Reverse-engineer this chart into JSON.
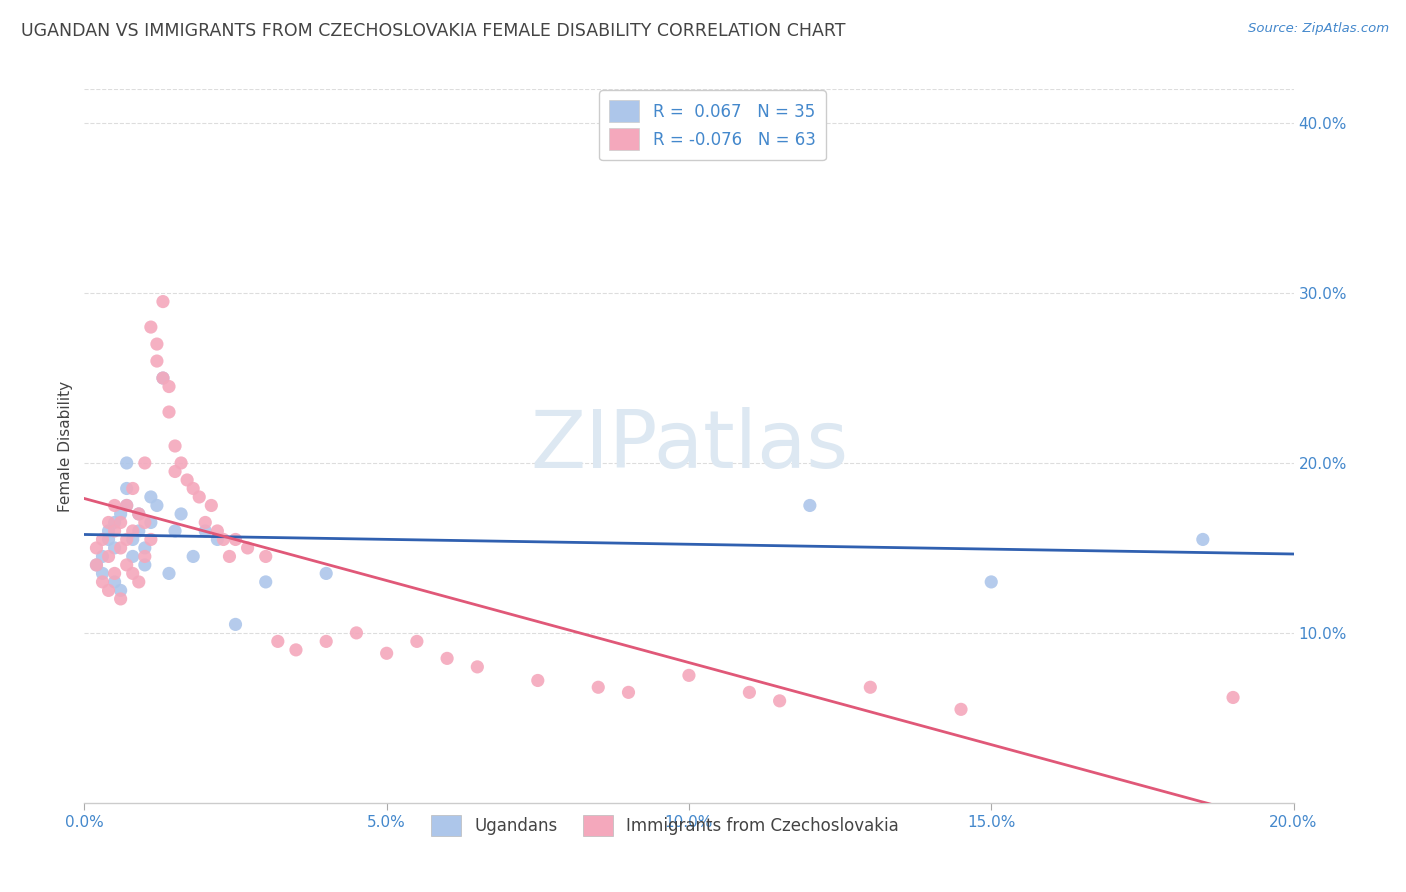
{
  "title": "UGANDAN VS IMMIGRANTS FROM CZECHOSLOVAKIA FEMALE DISABILITY CORRELATION CHART",
  "source": "Source: ZipAtlas.com",
  "ylabel": "Female Disability",
  "xlim": [
    0.0,
    0.2
  ],
  "ylim": [
    0.0,
    0.42
  ],
  "xticks": [
    0.0,
    0.05,
    0.1,
    0.15,
    0.2
  ],
  "xtick_labels": [
    "0.0%",
    "5.0%",
    "10.0%",
    "15.0%",
    "20.0%"
  ],
  "yticks_right": [
    0.1,
    0.2,
    0.3,
    0.4
  ],
  "ytick_labels_right": [
    "10.0%",
    "20.0%",
    "30.0%",
    "40.0%"
  ],
  "legend_entries": [
    {
      "label": "R =  0.067   N = 35",
      "color": "#adc6ea"
    },
    {
      "label": "R = -0.076   N = 63",
      "color": "#f4a8bc"
    }
  ],
  "series1_label": "Ugandans",
  "series2_label": "Immigrants from Czechoslovakia",
  "series1_color": "#adc6ea",
  "series2_color": "#f4a8bc",
  "series1_line_color": "#3060b0",
  "series2_line_color": "#e05878",
  "ugandan_x": [
    0.002,
    0.003,
    0.003,
    0.004,
    0.004,
    0.005,
    0.005,
    0.005,
    0.006,
    0.006,
    0.007,
    0.007,
    0.007,
    0.008,
    0.008,
    0.009,
    0.009,
    0.01,
    0.01,
    0.011,
    0.011,
    0.012,
    0.013,
    0.014,
    0.015,
    0.016,
    0.018,
    0.02,
    0.022,
    0.025,
    0.03,
    0.04,
    0.12,
    0.15,
    0.185
  ],
  "ugandan_y": [
    0.14,
    0.135,
    0.145,
    0.155,
    0.16,
    0.13,
    0.15,
    0.165,
    0.125,
    0.17,
    0.175,
    0.185,
    0.2,
    0.155,
    0.145,
    0.16,
    0.17,
    0.15,
    0.14,
    0.165,
    0.18,
    0.175,
    0.25,
    0.135,
    0.16,
    0.17,
    0.145,
    0.16,
    0.155,
    0.105,
    0.13,
    0.135,
    0.175,
    0.13,
    0.155
  ],
  "czech_x": [
    0.002,
    0.002,
    0.003,
    0.003,
    0.004,
    0.004,
    0.004,
    0.005,
    0.005,
    0.005,
    0.006,
    0.006,
    0.006,
    0.007,
    0.007,
    0.007,
    0.008,
    0.008,
    0.008,
    0.009,
    0.009,
    0.01,
    0.01,
    0.01,
    0.011,
    0.011,
    0.012,
    0.012,
    0.013,
    0.013,
    0.014,
    0.014,
    0.015,
    0.015,
    0.016,
    0.017,
    0.018,
    0.019,
    0.02,
    0.021,
    0.022,
    0.023,
    0.024,
    0.025,
    0.027,
    0.03,
    0.032,
    0.035,
    0.04,
    0.045,
    0.05,
    0.055,
    0.06,
    0.065,
    0.075,
    0.085,
    0.09,
    0.1,
    0.11,
    0.115,
    0.13,
    0.145,
    0.19
  ],
  "czech_y": [
    0.14,
    0.15,
    0.13,
    0.155,
    0.125,
    0.145,
    0.165,
    0.135,
    0.16,
    0.175,
    0.12,
    0.15,
    0.165,
    0.14,
    0.155,
    0.175,
    0.135,
    0.16,
    0.185,
    0.13,
    0.17,
    0.145,
    0.165,
    0.2,
    0.155,
    0.28,
    0.27,
    0.26,
    0.25,
    0.295,
    0.245,
    0.23,
    0.21,
    0.195,
    0.2,
    0.19,
    0.185,
    0.18,
    0.165,
    0.175,
    0.16,
    0.155,
    0.145,
    0.155,
    0.15,
    0.145,
    0.095,
    0.09,
    0.095,
    0.1,
    0.088,
    0.095,
    0.085,
    0.08,
    0.072,
    0.068,
    0.065,
    0.075,
    0.065,
    0.06,
    0.068,
    0.055,
    0.062
  ],
  "background_color": "#ffffff",
  "grid_color": "#dddddd",
  "title_color": "#444444",
  "axis_color": "#4488cc",
  "watermark_text": "ZIPatlas",
  "watermark_color": "#dde8f2"
}
